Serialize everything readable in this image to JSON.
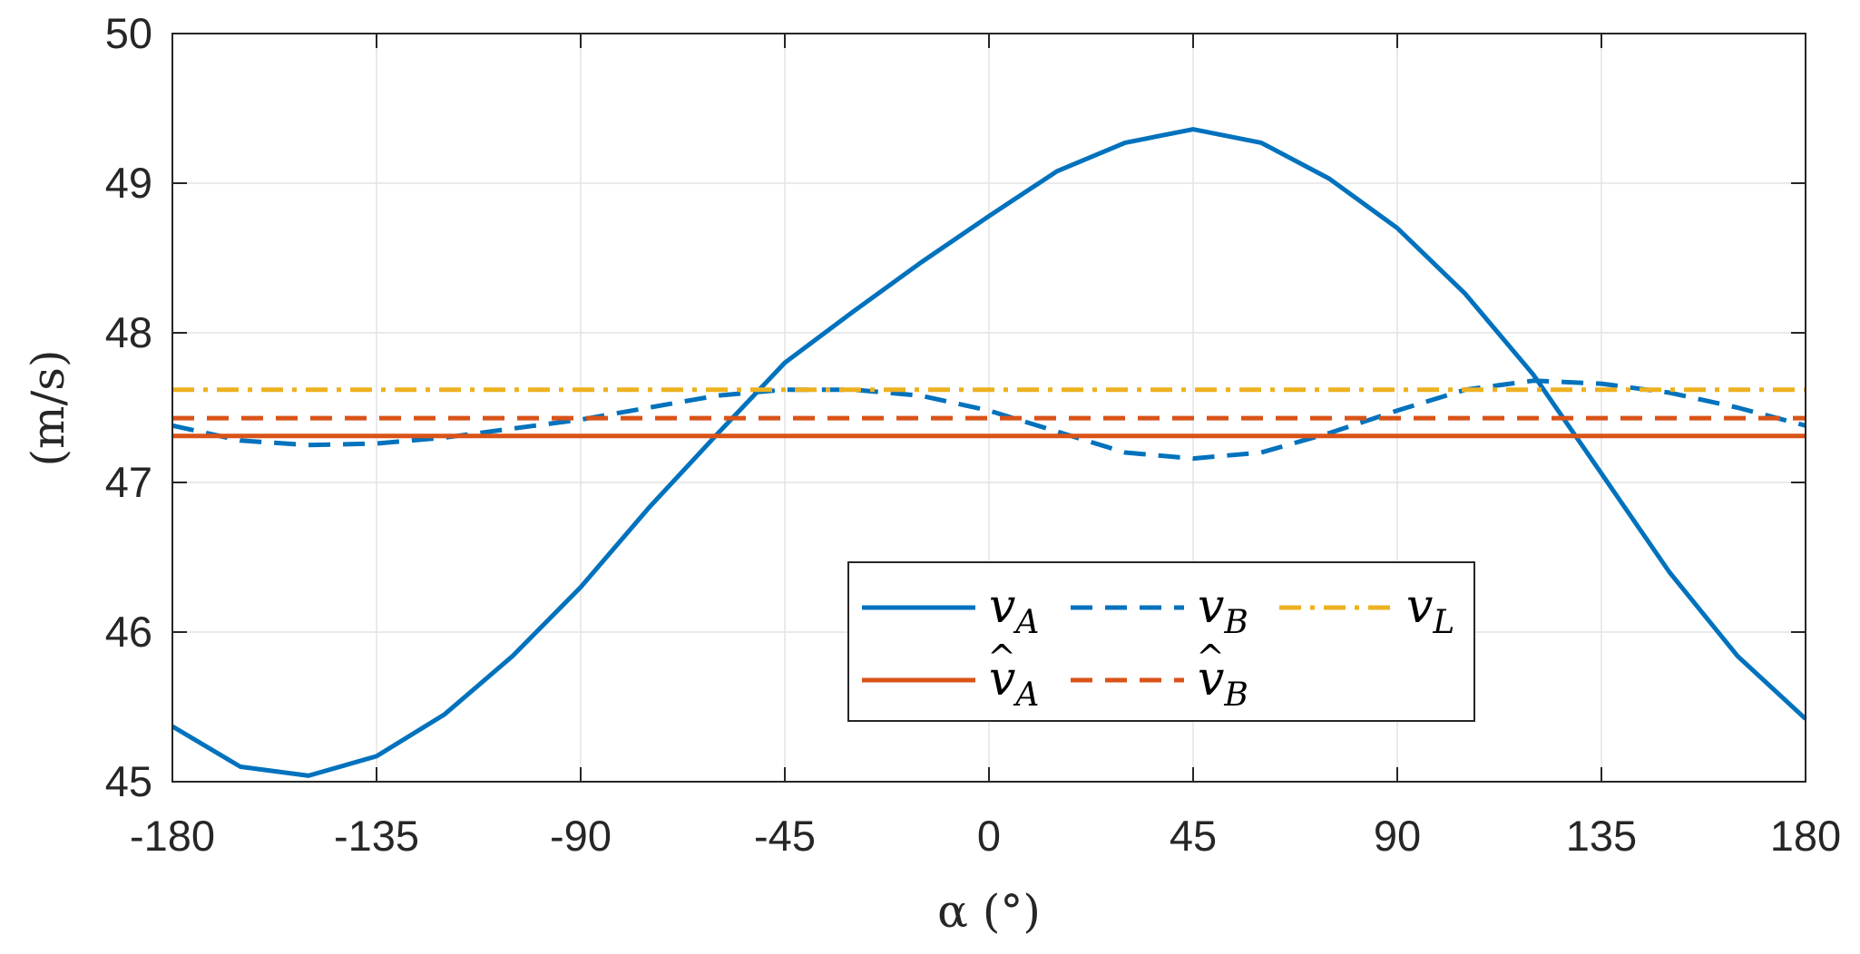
{
  "chart_data": {
    "type": "line",
    "xlabel": "α (°)",
    "ylabel": "(m/s)",
    "xlim": [
      -180,
      180
    ],
    "ylim": [
      45,
      50
    ],
    "xticks": [
      -180,
      -135,
      -90,
      -45,
      0,
      45,
      90,
      135,
      180
    ],
    "yticks": [
      45,
      46,
      47,
      48,
      49,
      50
    ],
    "grid": true,
    "legend_position": "center-bottom",
    "series": [
      {
        "name": "v_A",
        "legend_main": "v",
        "legend_sub": "A",
        "legend_hat": false,
        "color": "#0072BD",
        "style": "solid",
        "x": [
          -180,
          -165,
          -150,
          -135,
          -120,
          -105,
          -90,
          -75,
          -60,
          -45,
          -30,
          -15,
          0,
          15,
          30,
          45,
          60,
          75,
          90,
          105,
          120,
          135,
          150,
          165,
          180
        ],
        "y": [
          45.37,
          45.1,
          45.04,
          45.17,
          45.45,
          45.84,
          46.3,
          46.83,
          47.32,
          47.8,
          48.14,
          48.47,
          48.78,
          49.08,
          49.27,
          49.36,
          49.27,
          49.03,
          48.7,
          48.26,
          47.72,
          47.06,
          46.4,
          45.84,
          45.42
        ]
      },
      {
        "name": "v_B",
        "legend_main": "v",
        "legend_sub": "B",
        "legend_hat": false,
        "color": "#0072BD",
        "style": "dashed",
        "x": [
          -180,
          -165,
          -150,
          -135,
          -120,
          -105,
          -90,
          -75,
          -60,
          -45,
          -30,
          -15,
          0,
          15,
          30,
          45,
          60,
          75,
          90,
          105,
          120,
          135,
          150,
          165,
          180
        ],
        "y": [
          47.38,
          47.28,
          47.25,
          47.26,
          47.3,
          47.36,
          47.42,
          47.5,
          47.58,
          47.62,
          47.62,
          47.58,
          47.48,
          47.34,
          47.2,
          47.16,
          47.2,
          47.33,
          47.48,
          47.62,
          47.68,
          47.66,
          47.6,
          47.5,
          47.38
        ]
      },
      {
        "name": "v_L",
        "legend_main": "v",
        "legend_sub": "L",
        "legend_hat": false,
        "color": "#EDB120",
        "style": "dashdot",
        "x": [
          -180,
          180
        ],
        "y": [
          47.62,
          47.62
        ]
      },
      {
        "name": "v̂_A",
        "legend_main": "v",
        "legend_sub": "A",
        "legend_hat": true,
        "color": "#D95319",
        "style": "solid",
        "x": [
          -180,
          180
        ],
        "y": [
          47.31,
          47.31
        ]
      },
      {
        "name": "v̂_B",
        "legend_main": "v",
        "legend_sub": "B",
        "legend_hat": true,
        "color": "#D95319",
        "style": "dashed",
        "x": [
          -180,
          180
        ],
        "y": [
          47.43,
          47.43
        ]
      }
    ]
  }
}
